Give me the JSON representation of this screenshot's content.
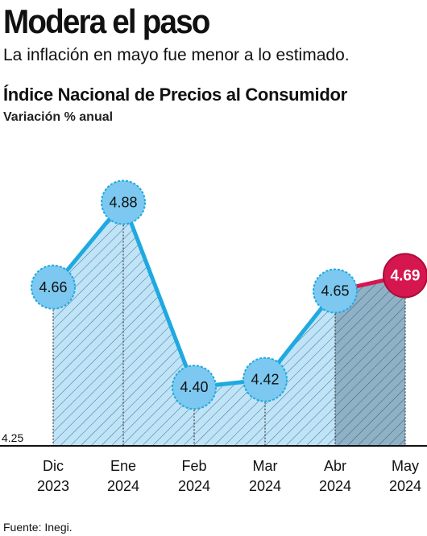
{
  "header": {
    "headline": "Modera el paso",
    "deck": "La inflación en mayo fue menor a lo estimado."
  },
  "source": "Fuente: Inegi.",
  "colors": {
    "line": "#1fa9e1",
    "area": "#bfe3f7",
    "area_highlight": "#8fb1c6",
    "point": "#7cc8f0",
    "point_stroke": "#1fa9e1",
    "highlight": "#d6164f"
  },
  "chart_data": {
    "type": "area",
    "title": "Índice Nacional de Precios al Consumidor",
    "subtitle": "Variación % anual",
    "categories": [
      [
        "Dic",
        "2023"
      ],
      [
        "Ene",
        "2024"
      ],
      [
        "Feb",
        "2024"
      ],
      [
        "Mar",
        "2024"
      ],
      [
        "Abr",
        "2024"
      ],
      [
        "May",
        "2024"
      ]
    ],
    "values": [
      4.66,
      4.88,
      4.4,
      4.42,
      4.65,
      4.69
    ],
    "labels": [
      "4.66",
      "4.88",
      "4.40",
      "4.42",
      "4.65",
      "4.69"
    ],
    "ylim": [
      4.25,
      4.95
    ],
    "y_baseline_label": "4.25",
    "highlight_index": 5,
    "grid": false
  }
}
